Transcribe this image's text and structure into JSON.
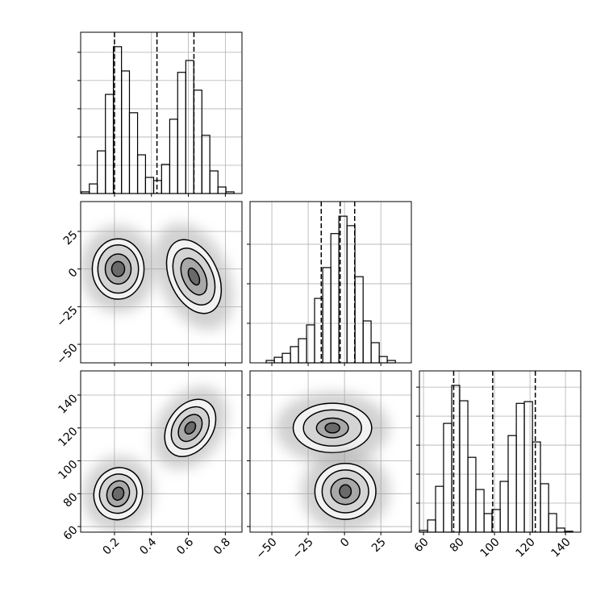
{
  "chart_data": {
    "type": "corner",
    "grid": true,
    "color": "#000000",
    "params": [
      {
        "xlim": [
          0.017,
          0.89
        ],
        "xticks": [
          0.2,
          0.4,
          0.6,
          0.8
        ]
      },
      {
        "xlim": [
          -65,
          46
        ],
        "xticks": [
          {
            "value": -50,
            "label": "−50"
          },
          {
            "value": -25,
            "label": "−25"
          },
          0,
          25
        ],
        "ylim": [
          -62.3,
          44.8
        ],
        "yticks": [
          {
            "value": -50,
            "label": "−50"
          },
          {
            "value": -25,
            "label": "−25"
          },
          0,
          25
        ]
      },
      {
        "xlim": [
          57.7,
          148.6
        ],
        "xticks": [
          60,
          80,
          100,
          120,
          140
        ],
        "ylim": [
          56.6,
          154.7
        ],
        "yticks": [
          60,
          80,
          100,
          120,
          140
        ]
      }
    ],
    "hists": [
      {
        "bins": [
          0.02,
          0.064,
          0.107,
          0.151,
          0.194,
          0.238,
          0.281,
          0.325,
          0.368,
          0.412,
          0.455,
          0.499,
          0.542,
          0.586,
          0.629,
          0.673,
          0.716,
          0.76,
          0.803,
          0.847
        ],
        "values": [
          6,
          34,
          151,
          351,
          520,
          434,
          286,
          137,
          57,
          46,
          103,
          263,
          429,
          471,
          366,
          206,
          80,
          23,
          6
        ],
        "ylim": [
          0,
          571
        ],
        "yticks": [
          100,
          200,
          300,
          400,
          500
        ],
        "quantiles": [
          0.2,
          0.43,
          0.63
        ]
      },
      {
        "bins": [
          -53.9,
          -48.3,
          -42.8,
          -37.2,
          -31.7,
          -26.1,
          -20.6,
          -15,
          -9.4,
          -3.9,
          1.7,
          7.2,
          12.8,
          18.3,
          23.9,
          29.4,
          35
        ],
        "values": [
          6,
          14,
          24,
          41,
          61,
          96,
          163,
          241,
          327,
          371,
          347,
          218,
          106,
          51,
          16,
          6
        ],
        "ylim": [
          0,
          408
        ],
        "yticks": [
          100,
          200,
          300
        ],
        "quantiles": [
          -16,
          -3,
          7
        ]
      },
      {
        "bins": [
          57.7,
          62.3,
          66.8,
          71.3,
          75.9,
          80.4,
          85,
          89.5,
          94.1,
          98.6,
          103.2,
          107.7,
          112.3,
          116.8,
          121.4,
          125.9,
          130.5,
          135,
          139.6,
          144.1
        ],
        "values": [
          6,
          42,
          158,
          375,
          506,
          453,
          258,
          147,
          64,
          78,
          175,
          333,
          444,
          450,
          311,
          167,
          64,
          14,
          3
        ],
        "ylim": [
          0,
          556
        ],
        "yticks": [
          100,
          200,
          300,
          400,
          500
        ],
        "quantiles": [
          77,
          99,
          123
        ]
      }
    ],
    "pairs": [
      {
        "clusters": [
          {
            "center": [
              0.22,
              0
            ],
            "angle": 0,
            "radii": [
              [
                0.14,
                20
              ],
              [
                0.11,
                16
              ],
              [
                0.07,
                10
              ],
              [
                0.035,
                5
              ]
            ]
          },
          {
            "center": [
              0.63,
              -5
            ],
            "angle": -25,
            "radii": [
              [
                0.13,
                26
              ],
              [
                0.1,
                20
              ],
              [
                0.06,
                13
              ],
              [
                0.025,
                6
              ]
            ]
          }
        ]
      },
      {
        "clusters": [
          {
            "center": [
              0.22,
              80
            ],
            "angle": 20,
            "radii": [
              [
                0.13,
                16
              ],
              [
                0.1,
                12
              ],
              [
                0.06,
                8
              ],
              [
                0.03,
                4
              ]
            ]
          },
          {
            "center": [
              0.61,
              120
            ],
            "angle": 35,
            "radii": [
              [
                0.12,
                19
              ],
              [
                0.09,
                14
              ],
              [
                0.055,
                9
              ],
              [
                0.025,
                4
              ]
            ]
          }
        ]
      },
      {
        "clusters": [
          {
            "center": [
              -8.3,
              120
            ],
            "angle": 0,
            "radii": [
              [
                27,
                15
              ],
              [
                20,
                11
              ],
              [
                11,
                6
              ],
              [
                5,
                3
              ]
            ]
          },
          {
            "center": [
              0.6,
              81.4
            ],
            "angle": 0,
            "radii": [
              [
                21,
                17
              ],
              [
                16,
                13
              ],
              [
                10,
                8
              ],
              [
                4,
                4
              ]
            ]
          }
        ]
      }
    ]
  }
}
